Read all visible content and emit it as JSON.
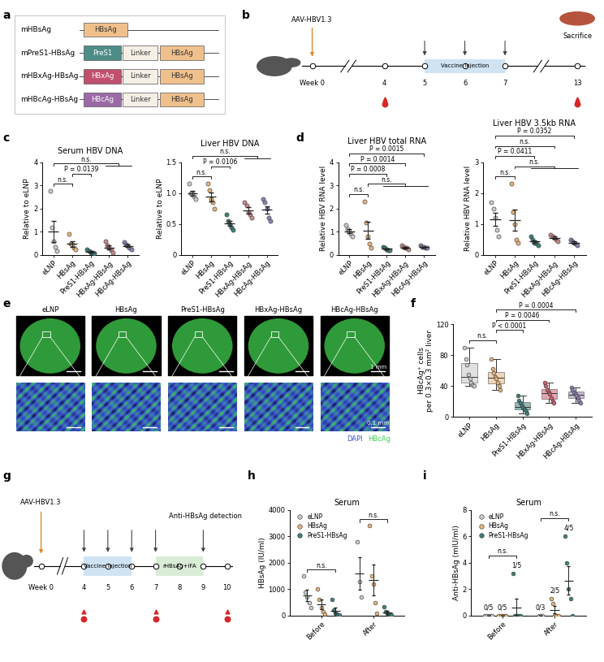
{
  "constructs": {
    "panel": "a",
    "rows": [
      {
        "name": "mHBsAg",
        "parts": [
          "HBsAg"
        ]
      },
      {
        "name": "mPreS1-HBsAg",
        "parts": [
          "PreS1",
          "Linker",
          "HBsAg"
        ]
      },
      {
        "name": "mHBxAg-HBsAg",
        "parts": [
          "HBxAg",
          "Linker",
          "HBsAg"
        ]
      },
      {
        "name": "mHBcAg-HBsAg",
        "parts": [
          "HBcAg",
          "Linker",
          "HBsAg"
        ]
      }
    ],
    "part_colors": {
      "HBsAg": "#f0c08c",
      "PreS1": "#4e8d87",
      "HBxAg": "#c0506e",
      "HBcAg": "#9b6aa6",
      "Linker": "#f6efe6"
    }
  },
  "timeline_b": {
    "panel": "b",
    "start_label": "AAV-HBV1.3",
    "ticks": [
      {
        "value": 0,
        "label": "Week 0"
      },
      4,
      5,
      6,
      7,
      13
    ],
    "injections": [
      5,
      6,
      7
    ],
    "injection_label": "Vaccine injection",
    "blood": [
      4,
      13
    ],
    "end_label": "Sacrifice"
  },
  "chart_data": [
    {
      "type": "dot",
      "panel": "c",
      "title": "Serum HBV DNA",
      "ylabel": "Relative to eLNP",
      "categories": [
        "eLNP",
        "HBsAg",
        "PreS1-HBsAg",
        "HBxAg-HBsAg",
        "HBcAg-HBsAg"
      ],
      "colors": [
        "#c8c8c8",
        "#e3b27a",
        "#3f7f78",
        "#c98a8a",
        "#9080b0"
      ],
      "values": [
        [
          2.75,
          1.2,
          0.6,
          0.35,
          0.15
        ],
        [
          0.9,
          0.5,
          0.45,
          0.3,
          0.25
        ],
        [
          0.25,
          0.15,
          0.1,
          0.08,
          0.05
        ],
        [
          0.6,
          0.4,
          0.3,
          0.2,
          0.1
        ],
        [
          0.55,
          0.45,
          0.4,
          0.3,
          0.25
        ]
      ],
      "mean": [
        1.0,
        0.48,
        0.13,
        0.32,
        0.39
      ],
      "sem": [
        0.45,
        0.12,
        0.04,
        0.09,
        0.05
      ],
      "ylim": [
        0,
        4
      ],
      "yticks": [
        0,
        1,
        2,
        3,
        4
      ],
      "annotations": [
        {
          "from": "eLNP",
          "to": [
            "HBsAg"
          ],
          "text": "n.s."
        },
        {
          "from": "HBsAg",
          "to": [
            "PreS1-HBsAg"
          ],
          "text": "P = 0.0139"
        },
        {
          "from": "eLNP",
          "to": [
            "HBxAg-HBsAg",
            "HBcAg-HBsAg"
          ],
          "text": "n.s."
        }
      ]
    },
    {
      "type": "dot",
      "title": "Liver HBV DNA",
      "ylabel": "Relative to eLNP",
      "categories": [
        "eLNP",
        "HBsAg",
        "PreS1-HBsAg",
        "HBxAg-HBsAg",
        "HBcAg-HBsAg"
      ],
      "colors": [
        "#c8c8c8",
        "#e3b27a",
        "#3f7f78",
        "#c98a8a",
        "#9080b0"
      ],
      "values": [
        [
          1.15,
          1.0,
          1.0,
          0.95,
          0.9
        ],
        [
          1.15,
          1.05,
          0.9,
          0.85,
          0.75
        ],
        [
          0.65,
          0.55,
          0.5,
          0.45,
          0.4
        ],
        [
          0.85,
          0.8,
          0.7,
          0.65,
          0.6
        ],
        [
          0.9,
          0.85,
          0.75,
          0.6,
          0.55
        ]
      ],
      "mean": [
        1.0,
        0.94,
        0.51,
        0.72,
        0.73
      ],
      "sem": [
        0.04,
        0.07,
        0.04,
        0.05,
        0.06
      ],
      "ylim": [
        0,
        1.5
      ],
      "yticks": [
        0,
        0.5,
        {
          "value": 1.0,
          "label": "1.0"
        },
        1.5
      ],
      "annotations": [
        {
          "from": "eLNP",
          "to": [
            "HBsAg"
          ],
          "text": "n.s."
        },
        {
          "from": "HBsAg",
          "to": [
            "PreS1-HBsAg"
          ],
          "text": "P = 0.0106"
        },
        {
          "from": "eLNP",
          "to": [
            "HBxAg-HBsAg",
            "HBcAg-HBsAg"
          ],
          "text": "n.s."
        }
      ]
    },
    {
      "type": "dot",
      "panel": "d",
      "title": "Liver HBV total RNA",
      "ylabel": "Relative HBV RNA level",
      "categories": [
        "eLNP",
        "HBsAg",
        "PreS1-HBsAg",
        "HBxAg-HBsAg",
        "HBcAg-HBsAg"
      ],
      "colors": [
        "#c8c8c8",
        "#e3b27a",
        "#3f7f78",
        "#c98a8a",
        "#9080b0"
      ],
      "values": [
        [
          1.3,
          1.1,
          1.0,
          0.9,
          0.8
        ],
        [
          2.3,
          1.4,
          0.8,
          0.5,
          0.3
        ],
        [
          0.35,
          0.3,
          0.25,
          0.2,
          0.2
        ],
        [
          0.4,
          0.35,
          0.3,
          0.3,
          0.25
        ],
        [
          0.4,
          0.35,
          0.35,
          0.3,
          0.3
        ]
      ],
      "mean": [
        1.02,
        1.06,
        0.26,
        0.32,
        0.34
      ],
      "sem": [
        0.09,
        0.36,
        0.03,
        0.03,
        0.02
      ],
      "ylim": [
        0,
        4
      ],
      "yticks": [
        0,
        1,
        2,
        3,
        4
      ],
      "annotations": [
        {
          "from": "eLNP",
          "to": [
            "HBsAg"
          ],
          "text": "n.s."
        },
        {
          "from": "HBsAg",
          "to": [
            "PreS1-HBsAg",
            "HBxAg-HBsAg",
            "HBcAg-HBsAg"
          ],
          "text": "n.s."
        },
        {
          "from": "eLNP",
          "to": [
            "PreS1-HBsAg"
          ],
          "text": "P = 0.0008"
        },
        {
          "from": "eLNP",
          "to": [
            "HBxAg-HBsAg"
          ],
          "text": "P = 0.0014"
        },
        {
          "from": "eLNP",
          "to": [
            "HBcAg-HBsAg"
          ],
          "text": "P = 0.0015"
        }
      ]
    },
    {
      "type": "dot",
      "title": "Liver HBV 3.5kb RNA",
      "ylabel": "Relative HBV RNA level",
      "categories": [
        "eLNP",
        "HBsAg",
        "PreS1-HBsAg",
        "HBxAg-HBsAg",
        "HBcAg-HBsAg"
      ],
      "colors": [
        "#c8c8c8",
        "#e3b27a",
        "#3f7f78",
        "#c98a8a",
        "#9080b0"
      ],
      "values": [
        [
          1.7,
          1.5,
          1.2,
          0.8,
          0.6
        ],
        [
          2.3,
          1.4,
          1.0,
          0.5,
          0.4
        ],
        [
          0.6,
          0.5,
          0.4,
          0.35,
          0.3
        ],
        [
          0.65,
          0.6,
          0.55,
          0.5,
          0.45
        ],
        [
          0.5,
          0.45,
          0.4,
          0.35,
          0.3
        ]
      ],
      "mean": [
        1.16,
        1.12,
        0.43,
        0.55,
        0.4
      ],
      "sem": [
        0.21,
        0.35,
        0.05,
        0.04,
        0.04
      ],
      "ylim": [
        0,
        3
      ],
      "yticks": [
        0,
        1,
        2,
        3
      ],
      "annotations": [
        {
          "from": "eLNP",
          "to": [
            "HBsAg"
          ],
          "text": "n.s."
        },
        {
          "from": "HBsAg",
          "to": [
            "PreS1-HBsAg",
            "HBxAg-HBsAg",
            "HBcAg-HBsAg"
          ],
          "text": "n.s."
        },
        {
          "from": "eLNP",
          "to": [
            "PreS1-HBsAg"
          ],
          "text": "P = 0.0411"
        },
        {
          "from": "eLNP",
          "to": [
            "HBxAg-HBsAg"
          ],
          "text": "n.s."
        },
        {
          "from": "eLNP",
          "to": [
            "HBcAg-HBsAg"
          ],
          "text": "P = 0.0352"
        }
      ]
    },
    {
      "type": "box",
      "panel": "f",
      "ylabel": "HBcAg⁺ cells\nper 0.3×0.3 mm² liver",
      "categories": [
        "eLNP",
        "HBsAg",
        "PreS1-HBsAg",
        "HBxAg-HBsAg",
        "HBcAg-HBsAg"
      ],
      "colors": [
        "#c8c8c8",
        "#e3b27a",
        "#3f7f78",
        "#c9606e",
        "#9080b0"
      ],
      "values": [
        [
          90,
          75,
          68,
          55,
          50,
          45,
          42,
          40
        ],
        [
          75,
          62,
          57,
          52,
          50,
          45,
          40,
          35
        ],
        [
          28,
          22,
          18,
          15,
          12,
          10,
          8,
          5
        ],
        [
          45,
          40,
          35,
          32,
          30,
          25,
          20,
          18
        ],
        [
          38,
          35,
          32,
          30,
          28,
          25,
          22,
          18
        ]
      ],
      "ylim": [
        0,
        120
      ],
      "yticks": [
        0,
        40,
        80,
        120
      ],
      "annotations": [
        {
          "from": "eLNP",
          "to": [
            "HBsAg"
          ],
          "text": "n.s."
        },
        {
          "from": "HBsAg",
          "to": [
            "PreS1-HBsAg"
          ],
          "text": "P < 0.0001"
        },
        {
          "from": "HBsAg",
          "to": [
            "HBxAg-HBsAg"
          ],
          "text": "P = 0.0046"
        },
        {
          "from": "HBsAg",
          "to": [
            "HBcAg-HBsAg"
          ],
          "text": "P = 0.0004"
        }
      ]
    },
    {
      "type": "grouped_dot",
      "panel": "h",
      "title": "Serum",
      "ylabel": "HBsAg (IU/ml)",
      "categories": [
        "Before",
        "After"
      ],
      "series": [
        {
          "name": "eLNP",
          "color": "#c8c8c8",
          "values": [
            [
              1500,
              900,
              700,
              500,
              300
            ],
            [
              2800,
              1300,
              700
            ]
          ],
          "mean": [
            780,
            1600
          ],
          "sem": [
            215,
            620
          ]
        },
        {
          "name": "HBsAg",
          "color": "#e3b27a",
          "values": [
            [
              1000,
              600,
              300,
              150,
              50
            ],
            [
              3400,
              1500,
              1200,
              500,
              100
            ]
          ],
          "mean": [
            420,
            1340
          ],
          "sem": [
            180,
            580
          ]
        },
        {
          "name": "PreS1-HBsAg",
          "color": "#3f7f78",
          "values": [
            [
              600,
              200,
              100,
              50,
              20
            ],
            [
              350,
              150,
              80,
              40,
              20
            ]
          ],
          "mean": [
            194,
            128
          ],
          "sem": [
            110,
            62
          ]
        }
      ],
      "ylim": [
        0,
        4000
      ],
      "yticks": [
        0,
        1000,
        2000,
        3000,
        4000
      ],
      "legend": "upper left",
      "annotations": [
        {
          "category": "Before",
          "text": "n.s."
        },
        {
          "category": "After",
          "text": "n.s."
        }
      ]
    },
    {
      "type": "grouped_dot",
      "panel": "i",
      "title": "Serum",
      "ylabel": "Anti-HBsAg (mIU/ml)",
      "categories": [
        "Before",
        "After"
      ],
      "series": [
        {
          "name": "eLNP",
          "color": "#c8c8c8",
          "values": [
            [
              0,
              0,
              0,
              0,
              0
            ],
            [
              0,
              0,
              0
            ]
          ],
          "mean": [
            0,
            0
          ],
          "sem": [
            0,
            0
          ],
          "count_labels": [
            "0/5",
            "0/3"
          ]
        },
        {
          "name": "HBsAg",
          "color": "#e3b27a",
          "values": [
            [
              0,
              0,
              0,
              0,
              0
            ],
            [
              1.3,
              0.9,
              0,
              0,
              0
            ]
          ],
          "mean": [
            0,
            0.44
          ],
          "sem": [
            0,
            0.28
          ],
          "count_labels": [
            "0/5",
            "2/5"
          ]
        },
        {
          "name": "PreS1-HBsAg",
          "color": "#3f7f78",
          "values": [
            [
              3.2,
              0,
              0,
              0,
              0
            ],
            [
              6.0,
              4.0,
              2.0,
              1.3,
              0
            ]
          ],
          "mean": [
            0.64,
            2.66
          ],
          "sem": [
            0.64,
            1.05
          ],
          "count_labels": [
            "1/5",
            "4/5"
          ]
        }
      ],
      "ylim": [
        0,
        8
      ],
      "yticks": [
        0,
        2,
        4,
        6,
        8
      ],
      "legend": "upper left",
      "annotations": [
        {
          "category": "Before",
          "text": "n.s."
        },
        {
          "category": "After",
          "text": "n.s."
        }
      ]
    }
  ],
  "images_e": {
    "panel": "e",
    "groups": [
      "eLNP",
      "HBsAg",
      "PreS1-HBsAg",
      "HBxAg-HBsAg",
      "HBcAg-HBsAg"
    ],
    "scale_bars": [
      "1 mm",
      "0.1 mm"
    ],
    "stains": [
      {
        "name": "DAPI",
        "color": "#3a55d0"
      },
      {
        "name": "HBcAg",
        "color": "#3cd04a"
      }
    ]
  },
  "timeline_g": {
    "panel": "g",
    "start_label": "AAV-HBV1.3",
    "ticks": [
      {
        "value": 0,
        "label": "Week 0"
      },
      4,
      5,
      6,
      7,
      8,
      9,
      10
    ],
    "injections": [
      4,
      5,
      6
    ],
    "injection_label": "Vaccine injection",
    "boosts": [
      7,
      9
    ],
    "boost_label": "rHBsAg+IFA",
    "blood": [
      4,
      7,
      10
    ],
    "end_label": "Anti-HBsAg detection"
  }
}
